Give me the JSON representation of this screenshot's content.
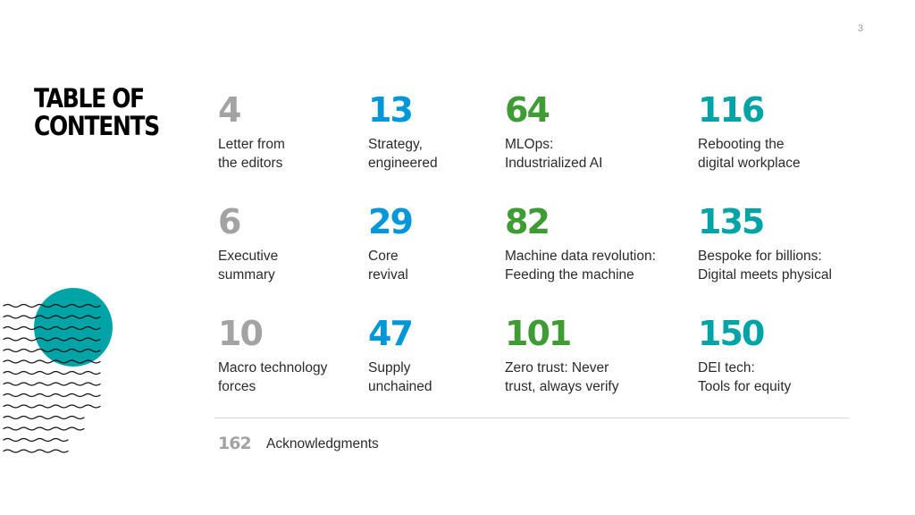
{
  "page_number": "3",
  "title": {
    "line1": "TABLE OF",
    "line2": "CONTENTS"
  },
  "colors": {
    "gray": "#a3a3a3",
    "blue": "#0097d8",
    "green": "#3f9c35",
    "teal": "#00a3a6",
    "text": "#2b2b2b"
  },
  "entries": [
    {
      "page": "4",
      "line1": "Letter from",
      "line2": "the editors",
      "color": "gray"
    },
    {
      "page": "13",
      "line1": "Strategy,",
      "line2": "engineered",
      "color": "blue"
    },
    {
      "page": "64",
      "line1": "MLOps:",
      "line2": "Industrialized AI",
      "color": "green"
    },
    {
      "page": "116",
      "line1": "Rebooting the",
      "line2": "digital workplace",
      "color": "teal"
    },
    {
      "page": "6",
      "line1": "Executive",
      "line2": "summary",
      "color": "gray"
    },
    {
      "page": "29",
      "line1": "Core",
      "line2": "revival",
      "color": "blue"
    },
    {
      "page": "82",
      "line1": "Machine data revolution:",
      "line2": "Feeding the machine",
      "color": "green"
    },
    {
      "page": "135",
      "line1": "Bespoke for billions:",
      "line2": "Digital meets physical",
      "color": "teal"
    },
    {
      "page": "10",
      "line1": "Macro technology",
      "line2": "forces",
      "color": "gray"
    },
    {
      "page": "47",
      "line1": "Supply",
      "line2": "unchained",
      "color": "blue"
    },
    {
      "page": "101",
      "line1": "Zero trust: Never",
      "line2": "trust, always verify",
      "color": "green"
    },
    {
      "page": "150",
      "line1": "DEI tech:",
      "line2": "Tools for equity",
      "color": "teal"
    }
  ],
  "acknowledgments": {
    "page": "162",
    "label": "Acknowledgments",
    "color": "gray"
  }
}
